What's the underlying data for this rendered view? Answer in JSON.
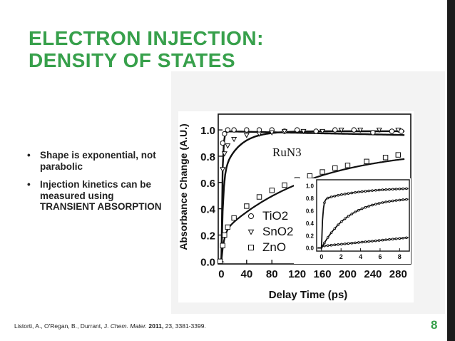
{
  "slide": {
    "title_lines": [
      "ELECTRON INJECTION:",
      "DENSITY OF STATES"
    ],
    "bullets": [
      "Shape is exponential, not parabolic",
      "Injection kinetics can be measured using TRANSIENT ABSORPTION"
    ],
    "citation": {
      "authors": "Listorti, A., O'Regan, B., Durrant, J.",
      "journal": "Chem. Mater.",
      "year": "2011,",
      "rest": "23, 3381-3399."
    },
    "page_number": "8",
    "colors": {
      "accent": "#37a04b",
      "panel": "#f3f3f3",
      "bar": "#1b1b1b"
    }
  },
  "chart_data": {
    "type": "scatter",
    "xlabel": "Delay Time (ps)",
    "ylabel": "Absorbance Change (A.U.)",
    "xlim": [
      -5,
      300
    ],
    "ylim": [
      -0.02,
      1.12
    ],
    "x_ticks": [
      0,
      40,
      80,
      120,
      160,
      200,
      240,
      280
    ],
    "y_ticks": [
      "0.0",
      "0.2",
      "0.4",
      "0.6",
      "0.8",
      "1.0"
    ],
    "annotation": "RuN3",
    "series": [
      {
        "name": "TiO2",
        "marker": "circle",
        "values": [
          [
            -2,
            0.0
          ],
          [
            2,
            0.9
          ],
          [
            5,
            0.97
          ],
          [
            10,
            1.0
          ],
          [
            20,
            1.0
          ],
          [
            40,
            1.0
          ],
          [
            60,
            1.0
          ],
          [
            80,
            1.0
          ],
          [
            100,
            0.99
          ],
          [
            120,
            1.0
          ],
          [
            150,
            0.99
          ],
          [
            180,
            1.0
          ],
          [
            210,
            1.0
          ],
          [
            240,
            0.98
          ],
          [
            270,
            0.99
          ],
          [
            285,
            0.99
          ]
        ]
      },
      {
        "name": "SnO2",
        "marker": "triangle",
        "values": [
          [
            -2,
            0.0
          ],
          [
            2,
            0.7
          ],
          [
            5,
            0.82
          ],
          [
            10,
            0.88
          ],
          [
            20,
            0.93
          ],
          [
            40,
            0.96
          ],
          [
            60,
            0.97
          ],
          [
            80,
            0.98
          ],
          [
            100,
            0.99
          ],
          [
            130,
            0.99
          ],
          [
            160,
            0.99
          ],
          [
            190,
            1.0
          ],
          [
            220,
            1.0
          ],
          [
            250,
            1.0
          ],
          [
            280,
            1.0
          ]
        ]
      },
      {
        "name": "ZnO",
        "marker": "square",
        "values": [
          [
            -2,
            0.0
          ],
          [
            2,
            0.12
          ],
          [
            5,
            0.2
          ],
          [
            10,
            0.26
          ],
          [
            20,
            0.33
          ],
          [
            40,
            0.42
          ],
          [
            60,
            0.49
          ],
          [
            80,
            0.54
          ],
          [
            100,
            0.58
          ],
          [
            120,
            0.62
          ],
          [
            140,
            0.65
          ],
          [
            160,
            0.68
          ],
          [
            180,
            0.71
          ],
          [
            200,
            0.73
          ],
          [
            230,
            0.76
          ],
          [
            260,
            0.79
          ],
          [
            280,
            0.81
          ]
        ]
      }
    ],
    "inset": {
      "x_ticks": [
        "0",
        "2",
        "4",
        "6",
        "8"
      ],
      "y_ticks": [
        "1.0",
        "0.8",
        "0.6",
        "0.4",
        "0.2",
        "0.0"
      ],
      "xlim": [
        -0.5,
        9
      ],
      "ylim": [
        -0.05,
        1.1
      ]
    }
  }
}
